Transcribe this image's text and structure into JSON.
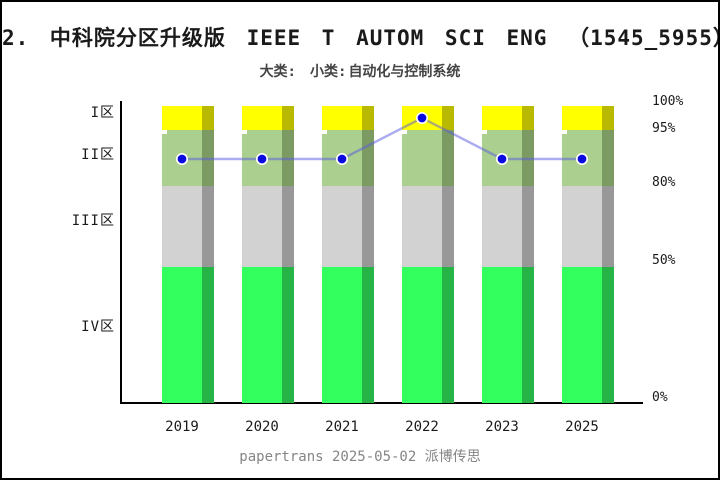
{
  "title": "2. 中科院分区升级版 IEEE T AUTOM SCI ENG （1545_5955）",
  "subtitle": {
    "major_label": "大类:",
    "minor_label": "小类:",
    "minor_value": "自动化与控制系统"
  },
  "footer": "papertrans 2025-05-02 派博传思",
  "colors": {
    "background": "#ffffff",
    "border": "#000000",
    "axis": "#000000",
    "text": "#1a1a1a",
    "footer_text": "#858585",
    "zone1_front": "#ffff00",
    "zone1_side": "#b9ba00",
    "zone2_front": "#abcf8e",
    "zone2_side": "#7c9b63",
    "zone3_front": "#d2d2d2",
    "zone3_side": "#989898",
    "zone4_front": "#33ff5f",
    "zone4_side": "#27b447",
    "line": "#5a5ae1",
    "marker": "#0909e0",
    "marker_ring": "#ffffff"
  },
  "chart_data": {
    "type": "bar",
    "subtype": "stacked-partition-zones-with-line-overlay",
    "title": "2. 中科院分区升级版 IEEE T AUTOM SCI ENG （1545_5955）",
    "categories": [
      "2019",
      "2020",
      "2021",
      "2022",
      "2023",
      "2025"
    ],
    "zones": [
      {
        "label": "I区",
        "pct_from": 95,
        "pct_to": 100
      },
      {
        "label": "II区",
        "pct_from": 80,
        "pct_to": 95
      },
      {
        "label": "III区",
        "pct_from": 50,
        "pct_to": 80
      },
      {
        "label": "IV区",
        "pct_from": 0,
        "pct_to": 50
      }
    ],
    "right_axis_ticks": [
      "100%",
      "95%",
      "80%",
      "50%",
      "0%"
    ],
    "series": [
      {
        "name": "journal-partition-by-year",
        "type": "line",
        "values": [
          "II区",
          "II区",
          "II区",
          "I区",
          "II区",
          "II区"
        ]
      }
    ],
    "legend_position": "none",
    "grid": false
  }
}
